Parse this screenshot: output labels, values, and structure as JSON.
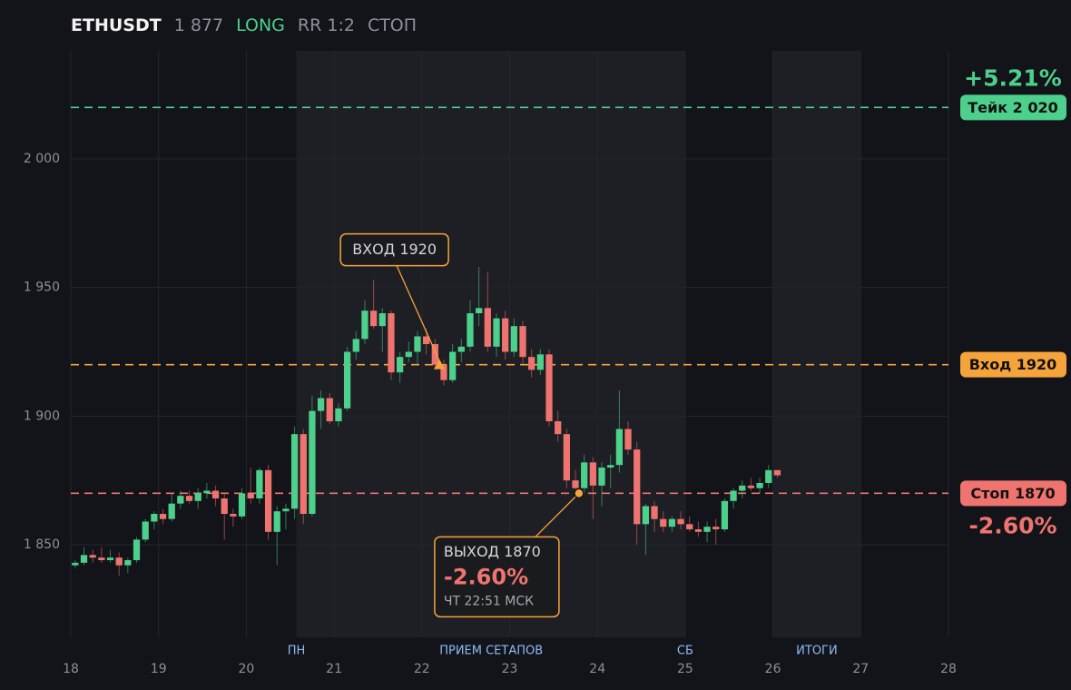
{
  "header": {
    "symbol": "ETHUSDT",
    "price": "1 877",
    "side": "LONG",
    "rr": "RR 1:2",
    "status": "СТОП"
  },
  "chart_data": {
    "type": "candlestick",
    "x": [
      18.05,
      18.15,
      18.25,
      18.35,
      18.45,
      18.55,
      18.65,
      18.75,
      18.85,
      18.95,
      19.05,
      19.15,
      19.25,
      19.35,
      19.45,
      19.55,
      19.65,
      19.75,
      19.85,
      19.95,
      20.05,
      20.15,
      20.25,
      20.35,
      20.45,
      20.55,
      20.65,
      20.75,
      20.85,
      20.95,
      21.05,
      21.15,
      21.25,
      21.35,
      21.45,
      21.55,
      21.65,
      21.75,
      21.85,
      21.95,
      22.05,
      22.15,
      22.25,
      22.35,
      22.45,
      22.55,
      22.65,
      22.75,
      22.85,
      22.95,
      23.05,
      23.15,
      23.25,
      23.35,
      23.45,
      23.55,
      23.65,
      23.75,
      23.85,
      23.95,
      24.05,
      24.15,
      24.25,
      24.35,
      24.45,
      24.55,
      24.65,
      24.75,
      24.85,
      24.95,
      25.05,
      25.15,
      25.25,
      25.35,
      25.45,
      25.55,
      25.65,
      25.75,
      25.85,
      25.95,
      26.05
    ],
    "open": [
      1842,
      1843,
      1846,
      1845,
      1844,
      1845,
      1842,
      1844,
      1852,
      1859,
      1862,
      1860,
      1866,
      1869,
      1867,
      1870,
      1871,
      1868,
      1862,
      1861,
      1870,
      1868,
      1879,
      1855,
      1863,
      1864,
      1893,
      1862,
      1902,
      1907,
      1898,
      1903,
      1925,
      1930,
      1941,
      1935,
      1940,
      1917,
      1923,
      1925,
      1931,
      1928,
      1920,
      1914,
      1925,
      1927,
      1940,
      1942,
      1927,
      1938,
      1925,
      1935,
      1923,
      1918,
      1924,
      1898,
      1893,
      1875,
      1872,
      1882,
      1873,
      1880,
      1881,
      1895,
      1887,
      1858,
      1865,
      1860,
      1857,
      1860,
      1858,
      1856,
      1855,
      1857,
      1856,
      1867,
      1871,
      1873,
      1872,
      1874,
      1879
    ],
    "high": [
      1844,
      1849,
      1848,
      1849,
      1848,
      1847,
      1845,
      1853,
      1860,
      1863,
      1864,
      1870,
      1871,
      1871,
      1872,
      1874,
      1873,
      1870,
      1864,
      1872,
      1880,
      1880,
      1881,
      1865,
      1866,
      1896,
      1895,
      1908,
      1910,
      1909,
      1905,
      1927,
      1933,
      1945,
      1953,
      1942,
      1941,
      1925,
      1929,
      1933,
      1934,
      1930,
      1922,
      1928,
      1930,
      1945,
      1958,
      1956,
      1940,
      1941,
      1938,
      1937,
      1926,
      1926,
      1926,
      1902,
      1895,
      1879,
      1885,
      1884,
      1882,
      1885,
      1910,
      1898,
      1890,
      1866,
      1867,
      1863,
      1861,
      1863,
      1861,
      1859,
      1859,
      1860,
      1868,
      1872,
      1875,
      1876,
      1876,
      1881,
      1879
    ],
    "low": [
      1841,
      1842,
      1843,
      1843,
      1843,
      1838,
      1839,
      1843,
      1851,
      1856,
      1858,
      1859,
      1864,
      1866,
      1864,
      1868,
      1865,
      1852,
      1857,
      1860,
      1866,
      1866,
      1852,
      1842,
      1856,
      1860,
      1858,
      1861,
      1895,
      1897,
      1896,
      1902,
      1922,
      1928,
      1934,
      1925,
      1914,
      1913,
      1921,
      1920,
      1924,
      1918,
      1912,
      1913,
      1921,
      1925,
      1935,
      1925,
      1923,
      1922,
      1923,
      1920,
      1915,
      1916,
      1896,
      1890,
      1872,
      1869,
      1870,
      1860,
      1865,
      1872,
      1878,
      1885,
      1850,
      1846,
      1855,
      1855,
      1855,
      1856,
      1855,
      1853,
      1851,
      1850,
      1855,
      1864,
      1868,
      1871,
      1870,
      1872,
      1876
    ],
    "close": [
      1843,
      1846,
      1845,
      1844,
      1845,
      1842,
      1844,
      1852,
      1859,
      1862,
      1860,
      1866,
      1869,
      1867,
      1870,
      1871,
      1868,
      1862,
      1861,
      1870,
      1868,
      1879,
      1855,
      1863,
      1864,
      1893,
      1862,
      1902,
      1907,
      1898,
      1903,
      1925,
      1930,
      1941,
      1935,
      1940,
      1917,
      1923,
      1925,
      1931,
      1928,
      1920,
      1914,
      1925,
      1927,
      1940,
      1942,
      1927,
      1938,
      1925,
      1935,
      1923,
      1918,
      1924,
      1898,
      1893,
      1875,
      1872,
      1882,
      1873,
      1880,
      1881,
      1895,
      1887,
      1858,
      1865,
      1860,
      1857,
      1860,
      1858,
      1856,
      1855,
      1857,
      1856,
      1867,
      1871,
      1873,
      1872,
      1874,
      1879,
      1877
    ],
    "up_color": "#4cd08c",
    "down_color": "#ef7470",
    "xlim": [
      18,
      28
    ],
    "xticks": [
      18,
      19,
      20,
      21,
      22,
      23,
      24,
      25,
      26,
      27,
      28
    ],
    "ylim": [
      1814,
      2042
    ],
    "yticks": [
      {
        "value": 1850,
        "label": "1 850"
      },
      {
        "value": 1900,
        "label": "1 900"
      },
      {
        "value": 1950,
        "label": "1 950"
      },
      {
        "value": 2000,
        "label": "2 000"
      }
    ],
    "grid": true,
    "shaded_ranges": [
      [
        20.57,
        25
      ],
      [
        26,
        27
      ]
    ],
    "session_labels": [
      {
        "x": 20.57,
        "label": "ПН"
      },
      {
        "x": 22.79,
        "label": "ПРИЕМ СЕТАПОВ"
      },
      {
        "x": 25,
        "label": "СБ"
      },
      {
        "x": 26.5,
        "label": "ИТОГИ"
      }
    ],
    "levels": [
      {
        "value": 2020,
        "label": "Тейк 2 020",
        "color": "#4cd08c",
        "change": "+5.21%"
      },
      {
        "value": 1920,
        "label": "Вход 1920",
        "color": "#f5a33b"
      },
      {
        "value": 1870,
        "label": "Стоп 1870",
        "color": "#ef7470",
        "change": "-2.60%"
      }
    ],
    "annotations": [
      {
        "x": 22.2,
        "y": 1920,
        "marker": "triangle",
        "text": "ВХОД 1920"
      },
      {
        "x": 23.79,
        "y": 1870,
        "marker": "circle",
        "text": "ВЫХОД 1870",
        "value": "-2.60%",
        "time": "ЧТ 22:51 МСК"
      }
    ]
  }
}
